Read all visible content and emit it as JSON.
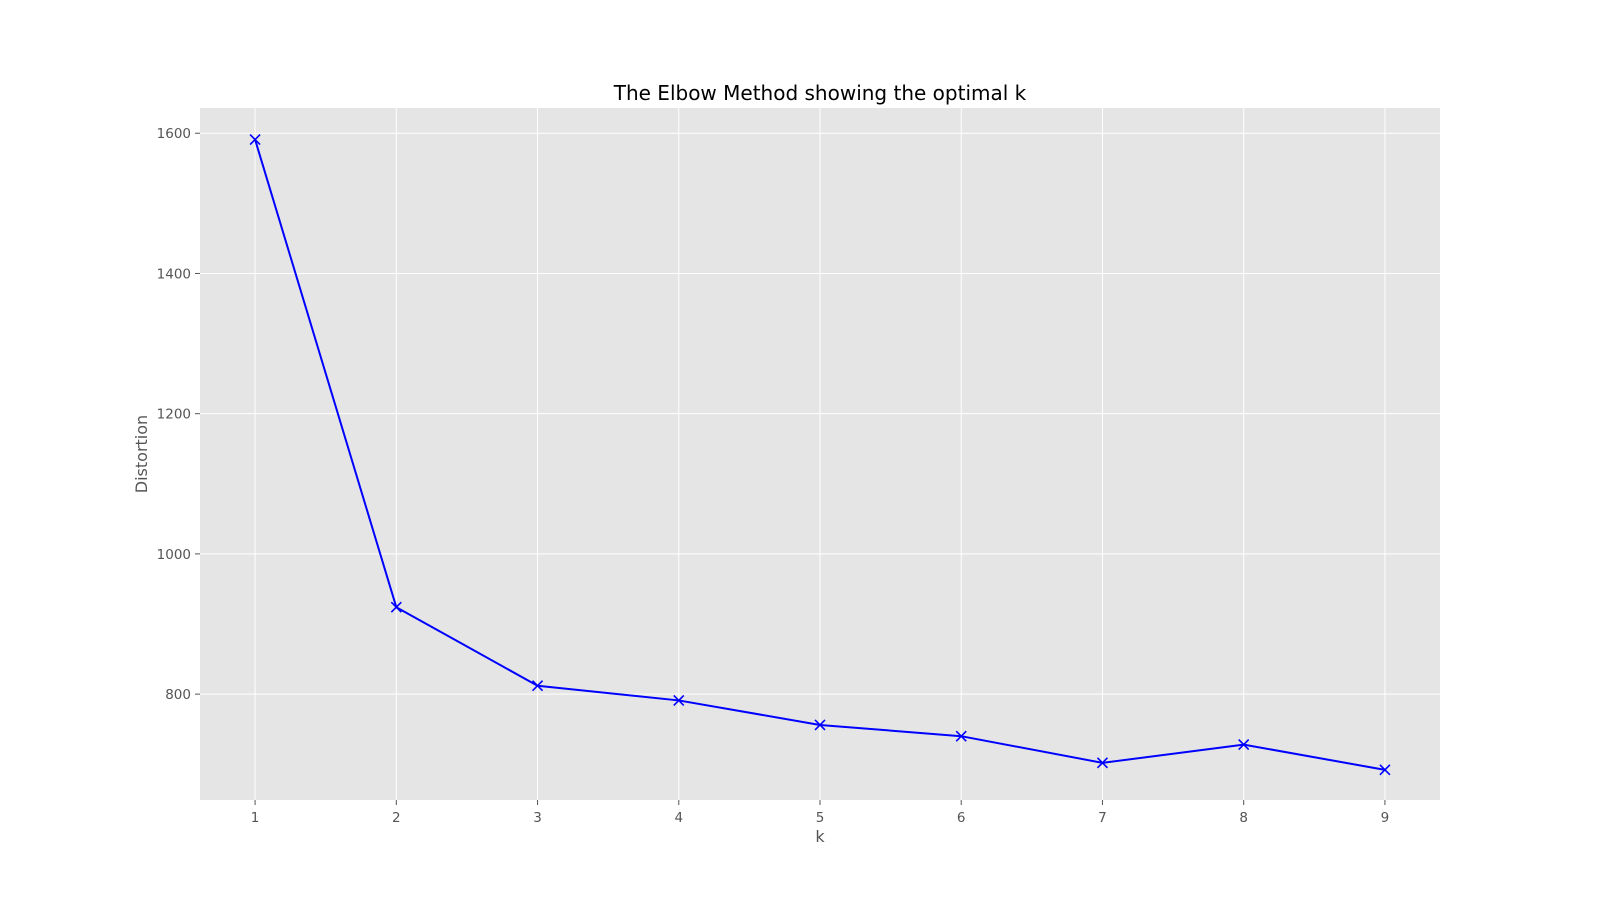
{
  "chart_data": {
    "type": "line",
    "title": "The Elbow Method showing the optimal k",
    "xlabel": "k",
    "ylabel": "Distortion",
    "x": [
      1,
      2,
      3,
      4,
      5,
      6,
      7,
      8,
      9
    ],
    "series": [
      {
        "values": [
          1591,
          924,
          812,
          791,
          756,
          740,
          702,
          728,
          692
        ],
        "color": "#0000ff",
        "marker": "x"
      }
    ],
    "xlim": [
      0.61,
      9.39
    ],
    "ylim": [
      649,
      1636
    ],
    "xticks": [
      "1",
      "2",
      "3",
      "4",
      "5",
      "6",
      "7",
      "8",
      "9"
    ],
    "xtick_values": [
      1,
      2,
      3,
      4,
      5,
      6,
      7,
      8,
      9
    ],
    "yticks": [
      "800",
      "1000",
      "1200",
      "1400",
      "1600"
    ],
    "ytick_values": [
      800,
      1000,
      1200,
      1400,
      1600
    ],
    "grid": true,
    "background": "#e5e5e5"
  }
}
